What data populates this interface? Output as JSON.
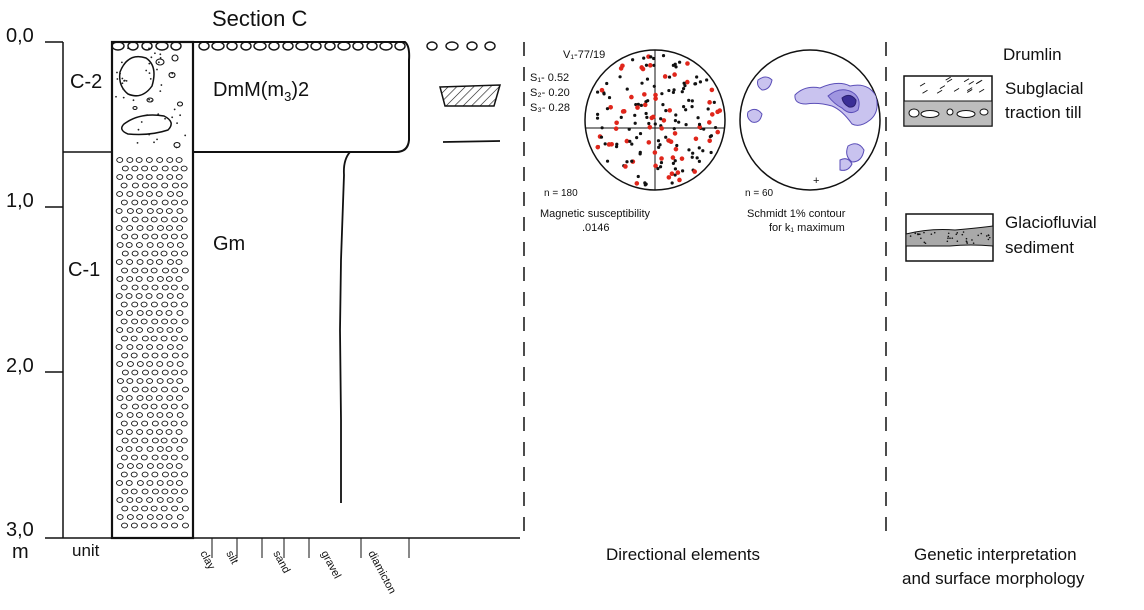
{
  "title": "Section C",
  "depth_axis": {
    "unit_label": "m",
    "ticks": [
      "0,0",
      "1,0",
      "2,0",
      "3,0"
    ]
  },
  "unit_header": "unit",
  "units": [
    {
      "code": "C-2",
      "facies": "DmM(m",
      "facies_sub": "3",
      "facies_suffix": ")2"
    },
    {
      "code": "C-1",
      "facies": "Gm"
    }
  ],
  "grain_sizes": [
    "clay",
    "silt",
    "sand",
    "gravel",
    "diamicton"
  ],
  "stereonet_magnetic": {
    "v1": "V₁-77/19",
    "s_labels": [
      "S₁- 0.52",
      "S₂- 0.20",
      "S₃- 0.28"
    ],
    "n": "n = 180",
    "caption_line1": "Magnetic susceptibility",
    "caption_line2": ".0146",
    "point_colors": {
      "black": "#111111",
      "red": "#e0261b"
    }
  },
  "stereonet_contour": {
    "n": "n = 60",
    "caption_line1": "Schmidt 1% contour",
    "caption_line2": "for k₁ maximum",
    "contour_color": "#5b4fb8"
  },
  "directional_elements_label": "Directional elements",
  "interpretation": {
    "header": "Drumlin",
    "legend": [
      {
        "label_line1": "Subglacial",
        "label_line2": "traction till"
      },
      {
        "label_line1": "Glaciofluvial",
        "label_line2": "sediment"
      }
    ],
    "footer_line1": "Genetic interpretation",
    "footer_line2": "and surface morphology"
  }
}
